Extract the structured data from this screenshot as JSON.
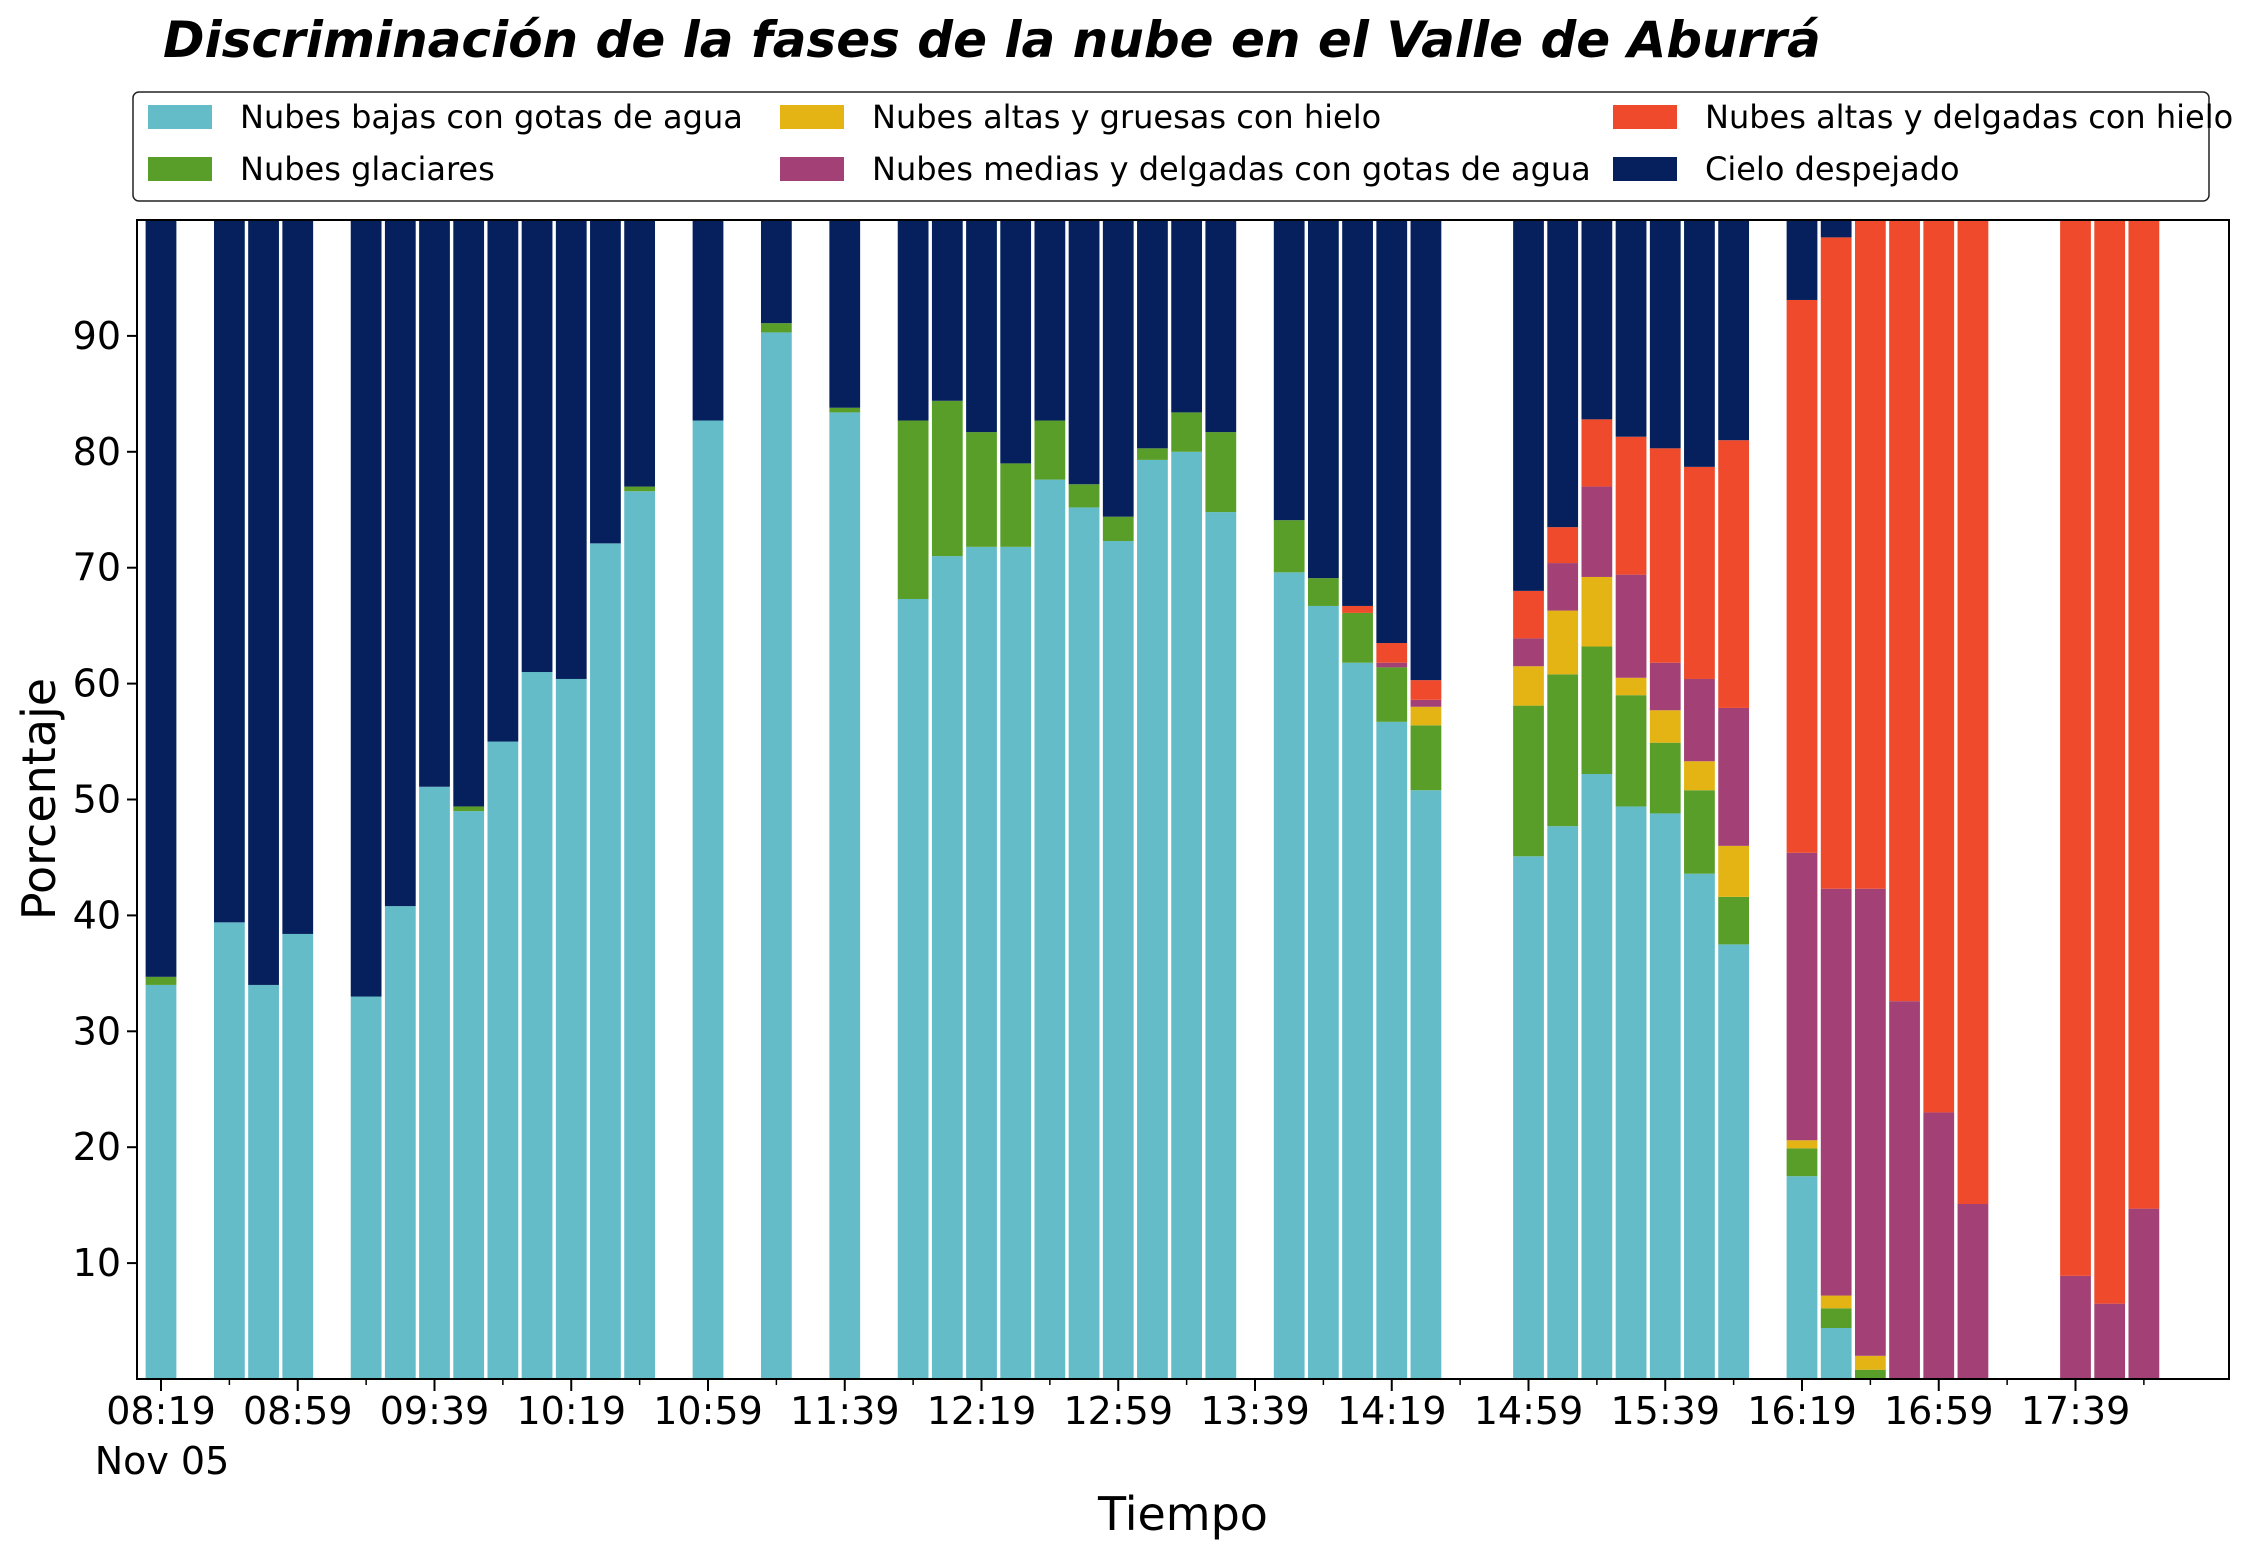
{
  "chart_data": {
    "type": "bar",
    "stacked": true,
    "title": "Discriminación de la fases de la nube en el Valle de Aburrá",
    "xlabel": "Tiempo",
    "ylabel": "Porcentaje",
    "date_label": "Nov 05",
    "ylim": [
      0,
      100
    ],
    "yticks": [
      10,
      20,
      30,
      40,
      50,
      60,
      70,
      80,
      90
    ],
    "xticks": [
      "08:19",
      "08:59",
      "09:39",
      "10:19",
      "10:59",
      "11:39",
      "12:19",
      "12:59",
      "13:39",
      "14:19",
      "14:59",
      "15:39",
      "16:19",
      "16:59",
      "17:39"
    ],
    "grid": false,
    "legend_position": "top",
    "bar_width_min": 9,
    "series": [
      {
        "name": "Nubes bajas con gotas de agua",
        "color": "#63bcc8"
      },
      {
        "name": "Nubes glaciares",
        "color": "#5a9e2a"
      },
      {
        "name": "Nubes altas y gruesas con hielo",
        "color": "#e3b414"
      },
      {
        "name": "Nubes medias y delgadas con gotas de agua",
        "color": "#a34176"
      },
      {
        "name": "Nubes altas y delgadas con hielo",
        "color": "#ee4a2b"
      },
      {
        "name": "Cielo despejado",
        "color": "#05205d"
      }
    ],
    "legend_order": [
      0,
      2,
      4,
      1,
      3,
      5
    ],
    "bars": [
      {
        "t": "08:19",
        "values": [
          34,
          0.7,
          0,
          0,
          0,
          65.3
        ]
      },
      {
        "t": "08:39",
        "values": [
          39.4,
          0,
          0,
          0,
          0,
          60.6
        ]
      },
      {
        "t": "08:49",
        "values": [
          34,
          0,
          0,
          0,
          0,
          66
        ]
      },
      {
        "t": "08:59",
        "values": [
          38.4,
          0,
          0,
          0,
          0,
          61.6
        ]
      },
      {
        "t": "09:19",
        "values": [
          33,
          0,
          0,
          0,
          0,
          67
        ]
      },
      {
        "t": "09:29",
        "values": [
          40.8,
          0,
          0,
          0,
          0,
          59.2
        ]
      },
      {
        "t": "09:39",
        "values": [
          51.1,
          0,
          0,
          0,
          0,
          48.9
        ]
      },
      {
        "t": "09:49",
        "values": [
          49,
          0.4,
          0,
          0,
          0,
          50.6
        ]
      },
      {
        "t": "09:59",
        "values": [
          55,
          0,
          0,
          0,
          0,
          45
        ]
      },
      {
        "t": "10:09",
        "values": [
          61,
          0,
          0,
          0,
          0,
          39
        ]
      },
      {
        "t": "10:19",
        "values": [
          60.4,
          0,
          0,
          0,
          0,
          39.6
        ]
      },
      {
        "t": "10:29",
        "values": [
          72.1,
          0,
          0,
          0,
          0,
          27.9
        ]
      },
      {
        "t": "10:39",
        "values": [
          76.6,
          0.4,
          0,
          0,
          0,
          23
        ]
      },
      {
        "t": "10:59",
        "values": [
          82.7,
          0,
          0,
          0,
          0,
          17.3
        ]
      },
      {
        "t": "11:19",
        "values": [
          90.3,
          0.8,
          0,
          0,
          0,
          8.9
        ]
      },
      {
        "t": "11:39",
        "values": [
          83.4,
          0.4,
          0,
          0,
          0,
          16.2
        ]
      },
      {
        "t": "11:59",
        "values": [
          67.3,
          15.4,
          0,
          0,
          0,
          17.3
        ]
      },
      {
        "t": "12:09",
        "values": [
          71,
          13.4,
          0,
          0,
          0,
          15.6
        ]
      },
      {
        "t": "12:19",
        "values": [
          71.8,
          9.9,
          0,
          0,
          0,
          18.3
        ]
      },
      {
        "t": "12:29",
        "values": [
          71.8,
          7.2,
          0,
          0,
          0,
          21
        ]
      },
      {
        "t": "12:39",
        "values": [
          77.6,
          5.1,
          0,
          0,
          0,
          17.3
        ]
      },
      {
        "t": "12:49",
        "values": [
          75.2,
          2,
          0,
          0,
          0,
          22.8
        ]
      },
      {
        "t": "12:59",
        "values": [
          72.3,
          2.1,
          0,
          0,
          0,
          25.6
        ]
      },
      {
        "t": "13:09",
        "values": [
          79.3,
          1,
          0,
          0,
          0,
          19.7
        ]
      },
      {
        "t": "13:19",
        "values": [
          80,
          3.4,
          0,
          0,
          0,
          16.6
        ]
      },
      {
        "t": "13:29",
        "values": [
          74.8,
          6.9,
          0,
          0,
          0,
          18.3
        ]
      },
      {
        "t": "13:49",
        "values": [
          69.6,
          4.5,
          0,
          0,
          0,
          25.9
        ]
      },
      {
        "t": "13:59",
        "values": [
          66.7,
          2.4,
          0,
          0,
          0,
          30.9
        ]
      },
      {
        "t": "14:09",
        "values": [
          61.8,
          4.3,
          0,
          0,
          0.6,
          33.3
        ]
      },
      {
        "t": "14:19",
        "values": [
          56.7,
          4.7,
          0,
          0.4,
          1.7,
          36.5
        ]
      },
      {
        "t": "14:29",
        "values": [
          50.8,
          5.6,
          1.6,
          0.6,
          1.7,
          39.7
        ]
      },
      {
        "t": "14:59",
        "values": [
          45.1,
          13,
          3.4,
          2.4,
          4.1,
          32
        ]
      },
      {
        "t": "15:09",
        "values": [
          47.7,
          13.1,
          5.5,
          4.1,
          3.1,
          26.5
        ]
      },
      {
        "t": "15:19",
        "values": [
          52.2,
          11,
          6,
          7.8,
          5.8,
          17.2
        ]
      },
      {
        "t": "15:29",
        "values": [
          49.4,
          9.6,
          1.5,
          8.9,
          11.9,
          18.7
        ]
      },
      {
        "t": "15:39",
        "values": [
          48.8,
          6.1,
          2.8,
          4.1,
          18.5,
          19.7
        ]
      },
      {
        "t": "15:49",
        "values": [
          43.6,
          7.2,
          2.5,
          7.1,
          18.3,
          21.3
        ]
      },
      {
        "t": "15:59",
        "values": [
          37.5,
          4.1,
          4.4,
          11.9,
          23.1,
          19
        ]
      },
      {
        "t": "16:19",
        "values": [
          17.5,
          2.4,
          0.7,
          24.8,
          47.7,
          6.9
        ]
      },
      {
        "t": "16:29",
        "values": [
          4.4,
          1.7,
          1.1,
          35.1,
          56.2,
          1.5
        ]
      },
      {
        "t": "16:39",
        "values": [
          0,
          0.8,
          1.2,
          40.3,
          57.7,
          0
        ]
      },
      {
        "t": "16:49",
        "values": [
          0,
          0,
          0,
          32.6,
          67.4,
          0
        ]
      },
      {
        "t": "16:59",
        "values": [
          0,
          0,
          0,
          23,
          77,
          0
        ]
      },
      {
        "t": "17:09",
        "values": [
          0,
          0,
          0,
          15.1,
          84.9,
          0
        ]
      },
      {
        "t": "17:39",
        "values": [
          0,
          0,
          0,
          8.9,
          91.1,
          0
        ]
      },
      {
        "t": "17:49",
        "values": [
          0,
          0,
          0,
          6.5,
          93.5,
          0
        ]
      },
      {
        "t": "17:59",
        "values": [
          0,
          0,
          0,
          14.7,
          85.3,
          0
        ]
      }
    ]
  }
}
